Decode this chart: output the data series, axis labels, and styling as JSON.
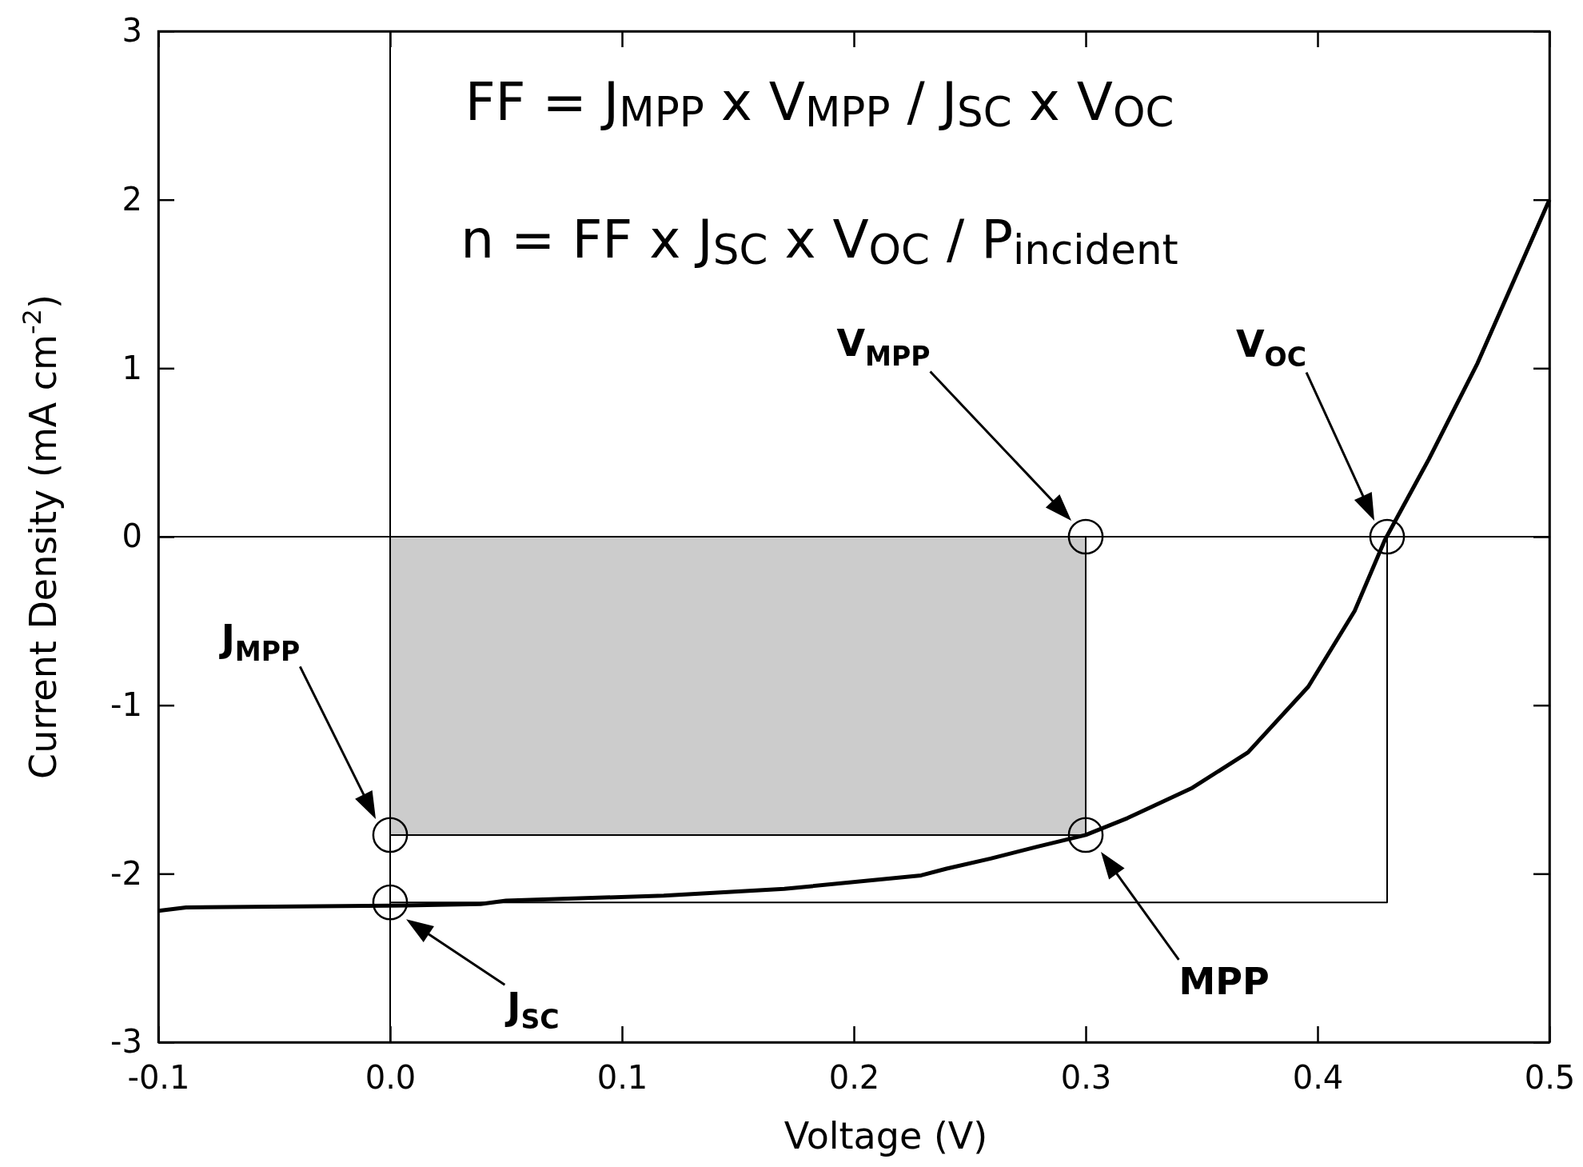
{
  "chart_data": {
    "type": "line",
    "xlabel": "Voltage (V)",
    "ylabel": "Current Density (mA cm$^{-2}$)",
    "xlim": [
      -0.1,
      0.5
    ],
    "ylim": [
      -3,
      3
    ],
    "xticks": [
      -0.1,
      {
        "value": 0,
        "label": "0.0"
      },
      0.1,
      0.2,
      0.3,
      0.4,
      0.5
    ],
    "yticks": [
      -3,
      -2,
      -1,
      0,
      1,
      2,
      3
    ],
    "grid": false,
    "series": [
      {
        "type": "line",
        "color": "#000000",
        "line_style": "solid",
        "x": [
          0,
          0
        ],
        "values": [
          -3,
          3
        ]
      },
      {
        "type": "line",
        "color": "#000000",
        "line_style": "solid",
        "x": [
          -0.1,
          0.5
        ],
        "values": [
          0,
          0
        ]
      },
      {
        "type": "area",
        "color": "#cccccc",
        "x": [
          0,
          0.3
        ],
        "values": [
          -1.77,
          -1.77
        ]
      },
      {
        "type": "line",
        "color": "#000000",
        "x": [
          0,
          0.43,
          0.43
        ],
        "values": [
          -2.17,
          -2.17,
          0
        ],
        "line_style": "solid"
      },
      {
        "color": "#000000",
        "line_style": "solid",
        "x": [
          -0.1,
          -0.088,
          0,
          0.039,
          0.05,
          0.118,
          0.17,
          0.229,
          0.24,
          0.259,
          0.279,
          0.3,
          0.318,
          0.346,
          0.37,
          0.396,
          0.416,
          0.429,
          0.448,
          0.469,
          0.5
        ],
        "values": [
          -2.22,
          -2.2,
          -2.19,
          -2.18,
          -2.16,
          -2.13,
          -2.09,
          -2.01,
          -1.97,
          -1.91,
          -1.84,
          -1.77,
          -1.67,
          -1.49,
          -1.28,
          -0.89,
          -0.44,
          -0.02,
          0.46,
          1.03,
          2.0
        ]
      },
      {
        "type": "scatter",
        "color": "#000000",
        "marker": "circle",
        "x": [
          0,
          0,
          0.3,
          0.3,
          0.43
        ],
        "values": [
          -1.77,
          -2.17,
          0,
          -1.77,
          0
        ]
      }
    ],
    "annotations": [
      "FF = J$_{MPP}$ x V$_{MPP}$ / J$_{SC}$ x V$_{OC}$",
      "n = FF x J$_{SC}$ x V$_{OC}$ / P$_{incident}$",
      "V$_{MPP}$",
      "V$_{OC}$",
      "J$_{MPP}$",
      "J$_{SC}$",
      "MPP"
    ]
  }
}
